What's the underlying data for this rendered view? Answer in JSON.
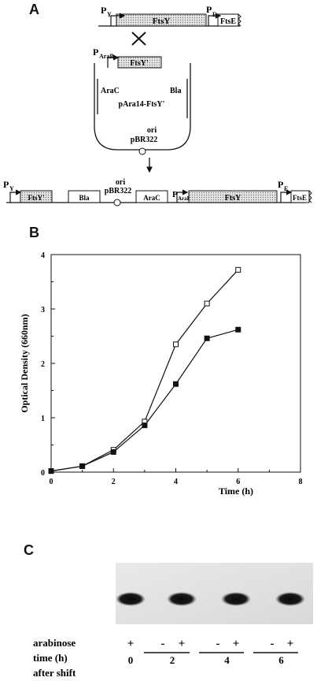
{
  "panelA": {
    "letter": "A",
    "top_row": {
      "promoter_left": "P",
      "promoter_left_sub": "Y",
      "gene1": "FtsY",
      "promoter_right": "P",
      "promoter_right_sub": "E",
      "gene2": "FtsE"
    },
    "plasmid": {
      "promoter": "P",
      "promoter_sub": "AraB",
      "gene": "FtsY'",
      "left_gene": "AraC",
      "right_gene": "Bla",
      "name": "pAra14-FtsY'",
      "ori": "ori",
      "ori_name": "pBR322"
    },
    "bottom_row": {
      "py": "P",
      "py_sub": "Y",
      "ftsy_prime": "FtsY'",
      "bla": "Bla",
      "ori": "ori",
      "ori_name": "pBR322",
      "arac": "AraC",
      "parab": "P",
      "parab_sub": "AraB",
      "ftsy": "FtsY",
      "pe": "P",
      "pe_sub": "E",
      "ftse": "FtsE"
    }
  },
  "panelB": {
    "letter": "B"
  },
  "chart_data": {
    "type": "line",
    "xlabel": "Time (h)",
    "ylabel": "Optical Density (660nm)",
    "xlim": [
      0,
      8
    ],
    "ylim": [
      0,
      4
    ],
    "xticks": [
      "0",
      "2",
      "4",
      "6",
      "8"
    ],
    "yticks": [
      "0",
      "1",
      "2",
      "3",
      "4"
    ],
    "grid": false,
    "series": [
      {
        "marker": "open-square",
        "x": [
          0,
          1,
          2,
          3,
          4,
          5,
          6
        ],
        "y": [
          0.02,
          0.11,
          0.41,
          0.93,
          2.35,
          3.1,
          3.72
        ]
      },
      {
        "marker": "filled-square",
        "x": [
          0,
          1,
          2,
          3,
          4,
          5,
          6
        ],
        "y": [
          0.02,
          0.11,
          0.37,
          0.86,
          1.62,
          2.46,
          2.62
        ]
      }
    ]
  },
  "panelC": {
    "letter": "C",
    "row_arabinose": "arabinose",
    "row_time": "time (h)",
    "row_after": "after shift",
    "lanes": [
      {
        "sign": "+",
        "band": true
      },
      {
        "sign": "-",
        "band": false
      },
      {
        "sign": "+",
        "band": true
      },
      {
        "sign": "-",
        "band": false
      },
      {
        "sign": "+",
        "band": true
      },
      {
        "sign": "-",
        "band": false
      },
      {
        "sign": "+",
        "band": true
      }
    ],
    "times": [
      "0",
      "2",
      "4",
      "6"
    ]
  }
}
